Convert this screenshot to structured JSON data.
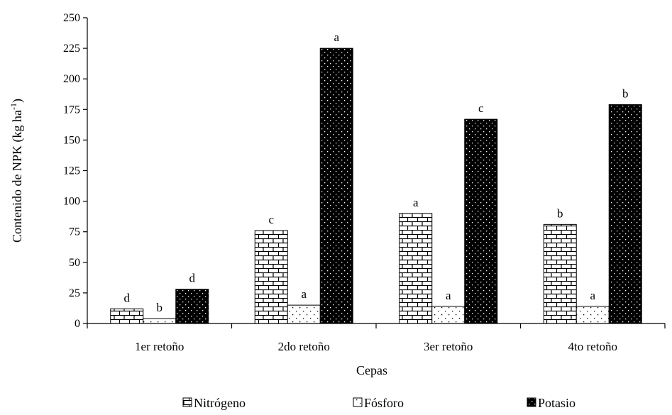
{
  "chart_data": {
    "type": "bar",
    "title": "",
    "xlabel": "Cepas",
    "ylabel": "Contenido de NPK (kg ha",
    "ylabel_sup": "-1",
    "ylabel_close": ")",
    "ylim": [
      0,
      250
    ],
    "yticks": [
      0,
      25,
      50,
      75,
      100,
      125,
      150,
      175,
      200,
      225,
      250
    ],
    "categories": [
      "1er retoño",
      "2do retoño",
      "3er retoño",
      "4to retoño"
    ],
    "series": [
      {
        "name": "Nitrógeno",
        "pattern": "brick",
        "values": [
          12,
          76,
          90,
          81
        ],
        "letters": [
          "d",
          "c",
          "a",
          "b"
        ]
      },
      {
        "name": "Fósforo",
        "pattern": "dots-sparse",
        "values": [
          4,
          15,
          14,
          14
        ],
        "letters": [
          "b",
          "a",
          "a",
          "a"
        ]
      },
      {
        "name": "Potasio",
        "pattern": "solid-dots",
        "values": [
          28,
          225,
          167,
          179
        ],
        "letters": [
          "d",
          "a",
          "c",
          "b"
        ]
      }
    ],
    "legend_position": "bottom",
    "grid": false,
    "colors": {
      "axis": "#000000",
      "bar_fill_light": "#ffffff",
      "bar_fill_dark": "#000000"
    }
  }
}
